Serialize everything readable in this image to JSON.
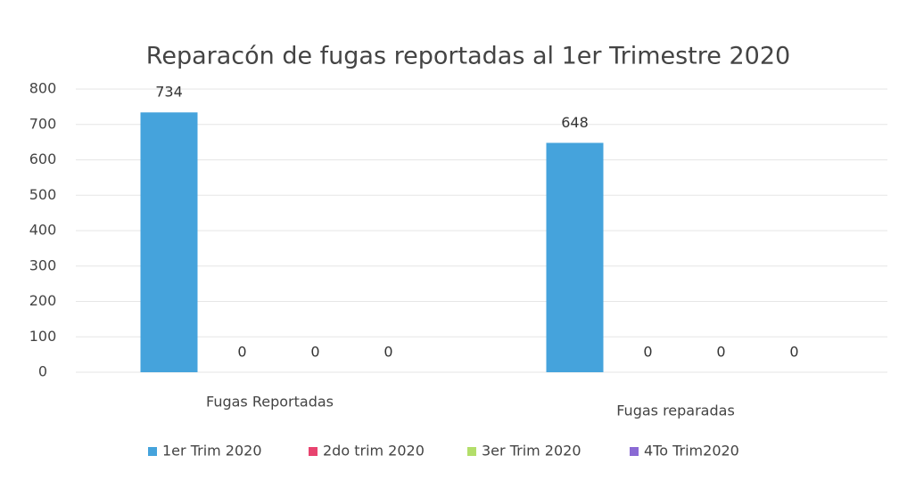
{
  "chart_data": {
    "type": "bar",
    "title": "Reparacón de fugas reportadas al 1er Trimestre 2020",
    "categories": [
      "Fugas Reportadas",
      "Fugas reparadas"
    ],
    "series": [
      {
        "name": "1er Trim 2020",
        "color": "#45a3dc",
        "values": [
          734,
          648
        ]
      },
      {
        "name": "2do trim 2020",
        "color": "#e8436f",
        "values": [
          0,
          0
        ]
      },
      {
        "name": "3er Trim 2020",
        "color": "#b3de6a",
        "values": [
          0,
          0
        ]
      },
      {
        "name": "4To Trim2020",
        "color": "#8a6ad4",
        "values": [
          0,
          0
        ]
      }
    ],
    "ylim": [
      0,
      800
    ],
    "yticks": [
      0,
      100,
      200,
      300,
      400,
      500,
      600,
      700,
      800
    ],
    "grid": true,
    "legend": "bottom"
  }
}
